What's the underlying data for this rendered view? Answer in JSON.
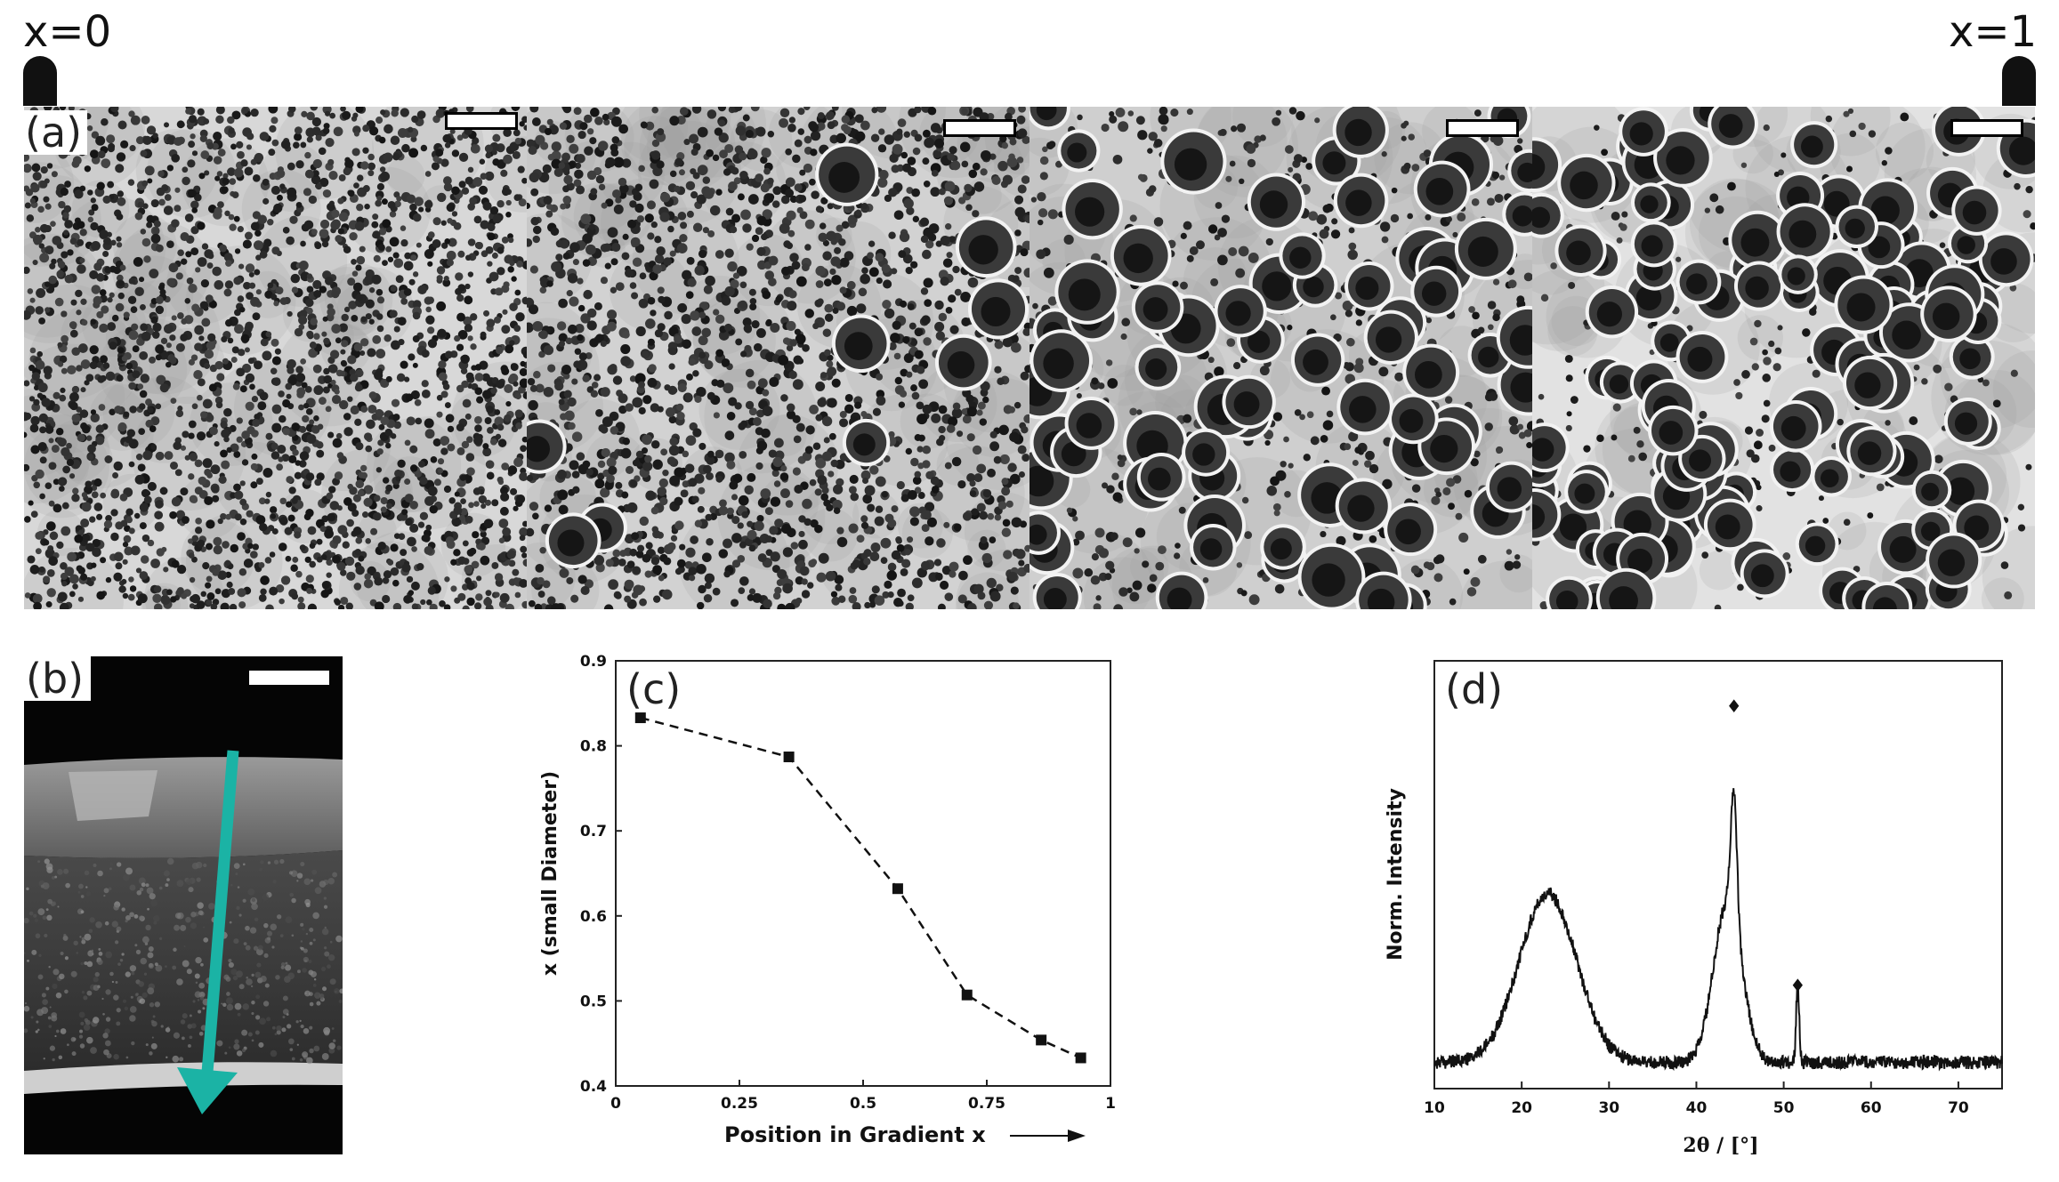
{
  "header": {
    "left_label": "x=0",
    "right_label": "x=1"
  },
  "panels": {
    "a": {
      "tag": "(a)",
      "tiles": 4
    },
    "b": {
      "tag": "(b)",
      "arrow_color": "#1bb3a5"
    },
    "c": {
      "tag": "(c)"
    },
    "d": {
      "tag": "(d)"
    }
  },
  "chart_data": [
    {
      "type": "line",
      "panel": "c",
      "xlabel": "Position in Gradient x",
      "ylabel": "x (small Diameter)",
      "xlim": [
        0,
        1
      ],
      "ylim": [
        0.4,
        0.9
      ],
      "xticks": [
        "0",
        "0.25",
        "0.5",
        "0.75",
        "1"
      ],
      "yticks": [
        "0.4",
        "0.5",
        "0.6",
        "0.7",
        "0.8",
        "0.9"
      ],
      "style": "dashed-with-square-markers",
      "series": [
        {
          "x": [
            0.05,
            0.35,
            0.57,
            0.71,
            0.86,
            0.94
          ],
          "y": [
            0.833,
            0.787,
            0.632,
            0.507,
            0.454,
            0.433
          ]
        }
      ]
    },
    {
      "type": "line",
      "panel": "d",
      "xlabel": "2θ / [°]",
      "ylabel": "Norm. Intensity",
      "xlim": [
        10,
        75
      ],
      "xticks": [
        "10",
        "20",
        "30",
        "40",
        "50",
        "60",
        "70"
      ],
      "annotations": [
        {
          "symbol": "♦",
          "x": 44.3
        },
        {
          "symbol": "♦",
          "x": 51.6
        }
      ]
    }
  ]
}
